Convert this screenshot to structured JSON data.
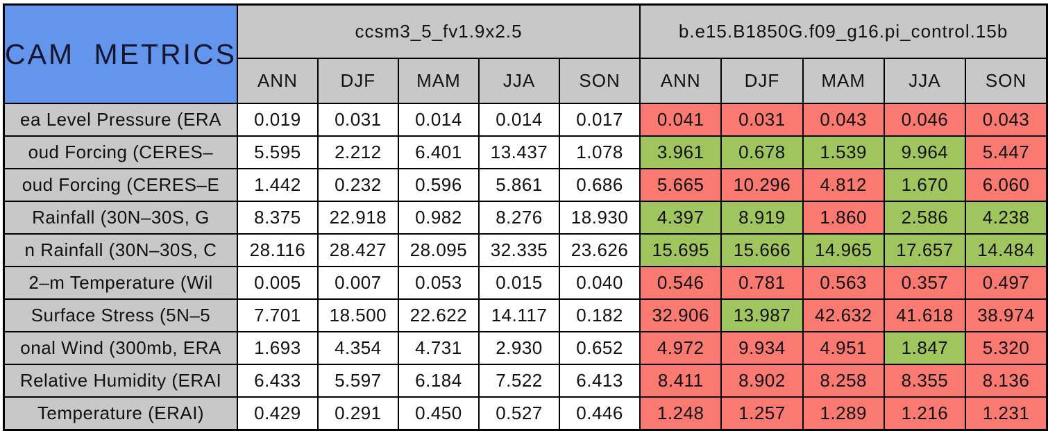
{
  "colors": {
    "title_bg": "#6495ED",
    "header_bg": "#C8C8C8",
    "control_bg": "#FFFFFF",
    "better": "#A0C45E",
    "worse": "#FA7970",
    "border": "#000000"
  },
  "chart_data": {
    "type": "table",
    "title": "CAM METRICS",
    "column_groups": [
      {
        "name": "ccsm3_5_fv1.9x2.5"
      },
      {
        "name": "b.e15.B1850G.f09_g16.pi_control.15b"
      }
    ],
    "season_columns": [
      "ANN",
      "DJF",
      "MAM",
      "JJA",
      "SON"
    ],
    "rows": [
      {
        "label": "ea Level Pressure (ERA",
        "group1": [
          "0.019",
          "0.031",
          "0.014",
          "0.014",
          "0.017"
        ],
        "group2": [
          "0.041",
          "0.031",
          "0.043",
          "0.046",
          "0.043"
        ],
        "group2_status": [
          "worse",
          "worse",
          "worse",
          "worse",
          "worse"
        ]
      },
      {
        "label": "oud Forcing (CERES–",
        "group1": [
          "5.595",
          "2.212",
          "6.401",
          "13.437",
          "1.078"
        ],
        "group2": [
          "3.961",
          "0.678",
          "1.539",
          "9.964",
          "5.447"
        ],
        "group2_status": [
          "better",
          "better",
          "better",
          "better",
          "worse"
        ]
      },
      {
        "label": "oud Forcing (CERES–E",
        "group1": [
          "1.442",
          "0.232",
          "0.596",
          "5.861",
          "0.686"
        ],
        "group2": [
          "5.665",
          "10.296",
          "4.812",
          "1.670",
          "6.060"
        ],
        "group2_status": [
          "worse",
          "worse",
          "worse",
          "better",
          "worse"
        ]
      },
      {
        "label": "Rainfall (30N–30S, G",
        "group1": [
          "8.375",
          "22.918",
          "0.982",
          "8.276",
          "18.930"
        ],
        "group2": [
          "4.397",
          "8.919",
          "1.860",
          "2.586",
          "4.238"
        ],
        "group2_status": [
          "better",
          "better",
          "worse",
          "better",
          "better"
        ]
      },
      {
        "label": "n Rainfall (30N–30S, C",
        "group1": [
          "28.116",
          "28.427",
          "28.095",
          "32.335",
          "23.626"
        ],
        "group2": [
          "15.695",
          "15.666",
          "14.965",
          "17.657",
          "14.484"
        ],
        "group2_status": [
          "better",
          "better",
          "better",
          "better",
          "better"
        ]
      },
      {
        "label": "2–m Temperature (Wil",
        "group1": [
          "0.005",
          "0.007",
          "0.053",
          "0.015",
          "0.040"
        ],
        "group2": [
          "0.546",
          "0.781",
          "0.563",
          "0.357",
          "0.497"
        ],
        "group2_status": [
          "worse",
          "worse",
          "worse",
          "worse",
          "worse"
        ]
      },
      {
        "label": "Surface Stress (5N–5",
        "group1": [
          "7.701",
          "18.500",
          "22.622",
          "14.117",
          "0.182"
        ],
        "group2": [
          "32.906",
          "13.987",
          "42.632",
          "41.618",
          "38.974"
        ],
        "group2_status": [
          "worse",
          "better",
          "worse",
          "worse",
          "worse"
        ]
      },
      {
        "label": "onal Wind (300mb, ERA",
        "group1": [
          "1.693",
          "4.354",
          "4.731",
          "2.930",
          "0.652"
        ],
        "group2": [
          "4.972",
          "9.934",
          "4.951",
          "1.847",
          "5.320"
        ],
        "group2_status": [
          "worse",
          "worse",
          "worse",
          "better",
          "worse"
        ]
      },
      {
        "label": "Relative Humidity (ERAI",
        "group1": [
          "6.433",
          "5.597",
          "6.184",
          "7.522",
          "6.413"
        ],
        "group2": [
          "8.411",
          "8.902",
          "8.258",
          "8.355",
          "8.136"
        ],
        "group2_status": [
          "worse",
          "worse",
          "worse",
          "worse",
          "worse"
        ]
      },
      {
        "label": "Temperature (ERAI)",
        "group1": [
          "0.429",
          "0.291",
          "0.450",
          "0.527",
          "0.446"
        ],
        "group2": [
          "1.248",
          "1.257",
          "1.289",
          "1.216",
          "1.231"
        ],
        "group2_status": [
          "worse",
          "worse",
          "worse",
          "worse",
          "worse"
        ]
      }
    ]
  }
}
